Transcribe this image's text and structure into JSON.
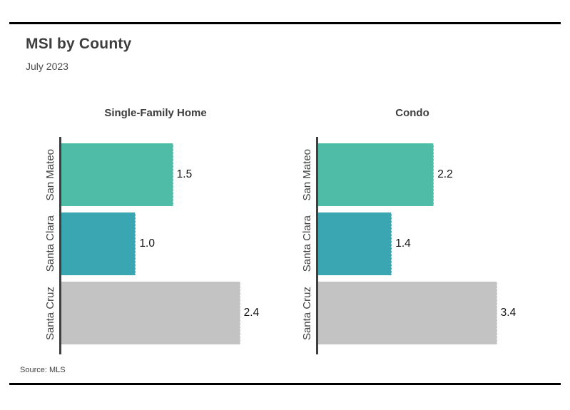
{
  "header": {
    "title": "MSI by County",
    "subtitle": "July 2023"
  },
  "footer": {
    "source": "Source: MLS"
  },
  "chart_data": {
    "type": "bar",
    "orientation": "horizontal",
    "title": "MSI by County",
    "subtitle": "July 2023",
    "source": "Source: MLS",
    "categories": [
      "San Mateo",
      "Santa Clara",
      "Santa Cruz"
    ],
    "panels": [
      {
        "title": "Single-Family Home",
        "values": [
          1.5,
          1.0,
          2.4
        ]
      },
      {
        "title": "Condo",
        "values": [
          2.2,
          1.4,
          3.4
        ]
      }
    ],
    "category_colors": [
      "#4FBCA8",
      "#3AA6B2",
      "#C3C3C3"
    ],
    "axis_color": "#3F3F3F",
    "value_label_decimals": 1,
    "layout": {
      "grid": false,
      "legend": false,
      "value_labels": "end-of-bar",
      "max_bar_fraction": 0.755,
      "category_labels_rotated": true
    }
  }
}
